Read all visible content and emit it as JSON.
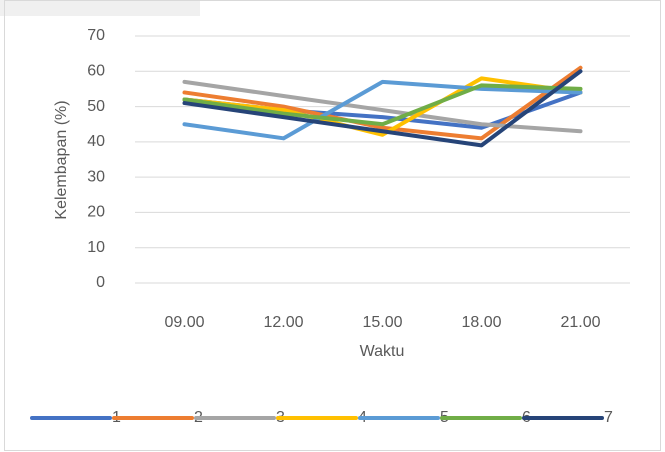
{
  "chart_data": {
    "type": "line",
    "y_label": "Kelembapan (%)",
    "x_label": "Waktu",
    "categories": [
      "09.00",
      "12.00",
      "15.00",
      "18.00",
      "21.00"
    ],
    "series": [
      {
        "name": "1",
        "color": "#4472c4",
        "values": [
          52,
          49,
          47,
          44,
          54
        ]
      },
      {
        "name": "2",
        "color": "#ed7d31",
        "values": [
          54,
          50,
          44,
          41,
          61
        ]
      },
      {
        "name": "3",
        "color": "#a5a5a5",
        "values": [
          57,
          53,
          49,
          45,
          43
        ]
      },
      {
        "name": "4",
        "color": "#ffc000",
        "values": [
          52,
          49,
          42,
          58,
          54
        ]
      },
      {
        "name": "5",
        "color": "#5b9bd5",
        "values": [
          45,
          41,
          57,
          55,
          54
        ]
      },
      {
        "name": "6",
        "color": "#70ad47",
        "values": [
          52,
          48,
          45,
          56,
          55
        ]
      },
      {
        "name": "7",
        "color": "#264478",
        "values": [
          51,
          47,
          43,
          39,
          60
        ]
      }
    ],
    "ylim": [
      0,
      70
    ],
    "yticks": [
      0,
      10,
      20,
      30,
      40,
      50,
      60,
      70
    ],
    "grid": true,
    "legend": "bottom"
  }
}
